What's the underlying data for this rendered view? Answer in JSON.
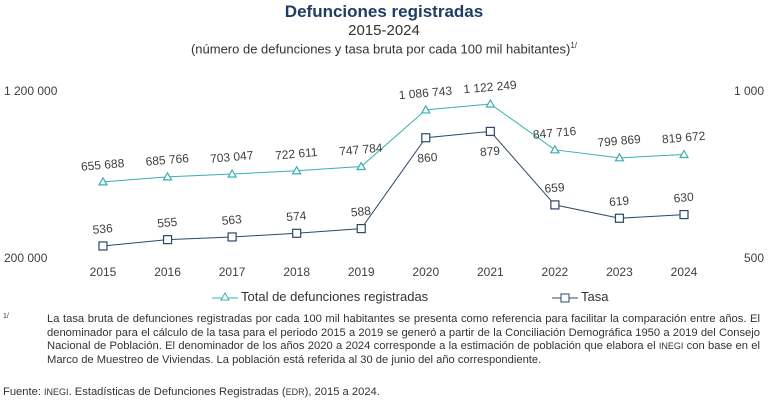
{
  "title": "Defunciones registradas",
  "subtitle": "2015-2024",
  "subtitle2": "(número de defunciones y tasa bruta por cada 100 mil habitantes)",
  "subtitle2_sup": "1/",
  "chart_data": {
    "type": "line",
    "categories": [
      "2015",
      "2016",
      "2017",
      "2018",
      "2019",
      "2020",
      "2021",
      "2022",
      "2023",
      "2024"
    ],
    "left_axis": {
      "ticks": [
        "1 200 000",
        "200 000"
      ],
      "ylim": [
        200000,
        1200000
      ]
    },
    "right_axis": {
      "ticks": [
        "1 000",
        "500"
      ],
      "ylim": [
        500,
        1000
      ]
    },
    "series": [
      {
        "name": "Total de defunciones registradas",
        "axis": "left",
        "color": "#3aafb0",
        "marker": "triangle",
        "values": [
          655688,
          685766,
          703047,
          722611,
          747784,
          1086743,
          1122249,
          847716,
          799869,
          819672
        ],
        "labels": [
          "655 688",
          "685 766",
          "703 047",
          "722 611",
          "747 784",
          "1 086 743",
          "1 122 249",
          "847 716",
          "799 869",
          "819 672"
        ]
      },
      {
        "name": "Tasa",
        "axis": "right",
        "color": "#2c4868",
        "marker": "square",
        "values": [
          536,
          555,
          563,
          574,
          588,
          860,
          879,
          659,
          619,
          630
        ],
        "labels": [
          "536",
          "555",
          "563",
          "574",
          "588",
          "860",
          "879",
          "659",
          "619",
          "630"
        ]
      }
    ],
    "grid": false,
    "legend": "bottom"
  },
  "footnote_mark": "1/",
  "footnote_parts": [
    "La tasa bruta de defunciones registradas por cada 100 mil habitantes se presenta como referencia para facilitar la comparación entre años. El denominador para el cálculo de la tasa para el periodo 2015 a 2019 se generó a partir de la Conciliación Demográfica 1950 a 2019 del Consejo Nacional de Población. El denominador de los años 2020 a 2024 corresponde a la estimación de población que elabora el ",
    "INEGI",
    " con base en el Marco de Muestreo de Viviendas. La población está referida al 30 de junio del año correspondiente."
  ],
  "source_parts": [
    "Fuente: ",
    "INEGI",
    ". Estadísticas de Defunciones Registradas (",
    "EDR",
    "), 2015 a 2024."
  ]
}
